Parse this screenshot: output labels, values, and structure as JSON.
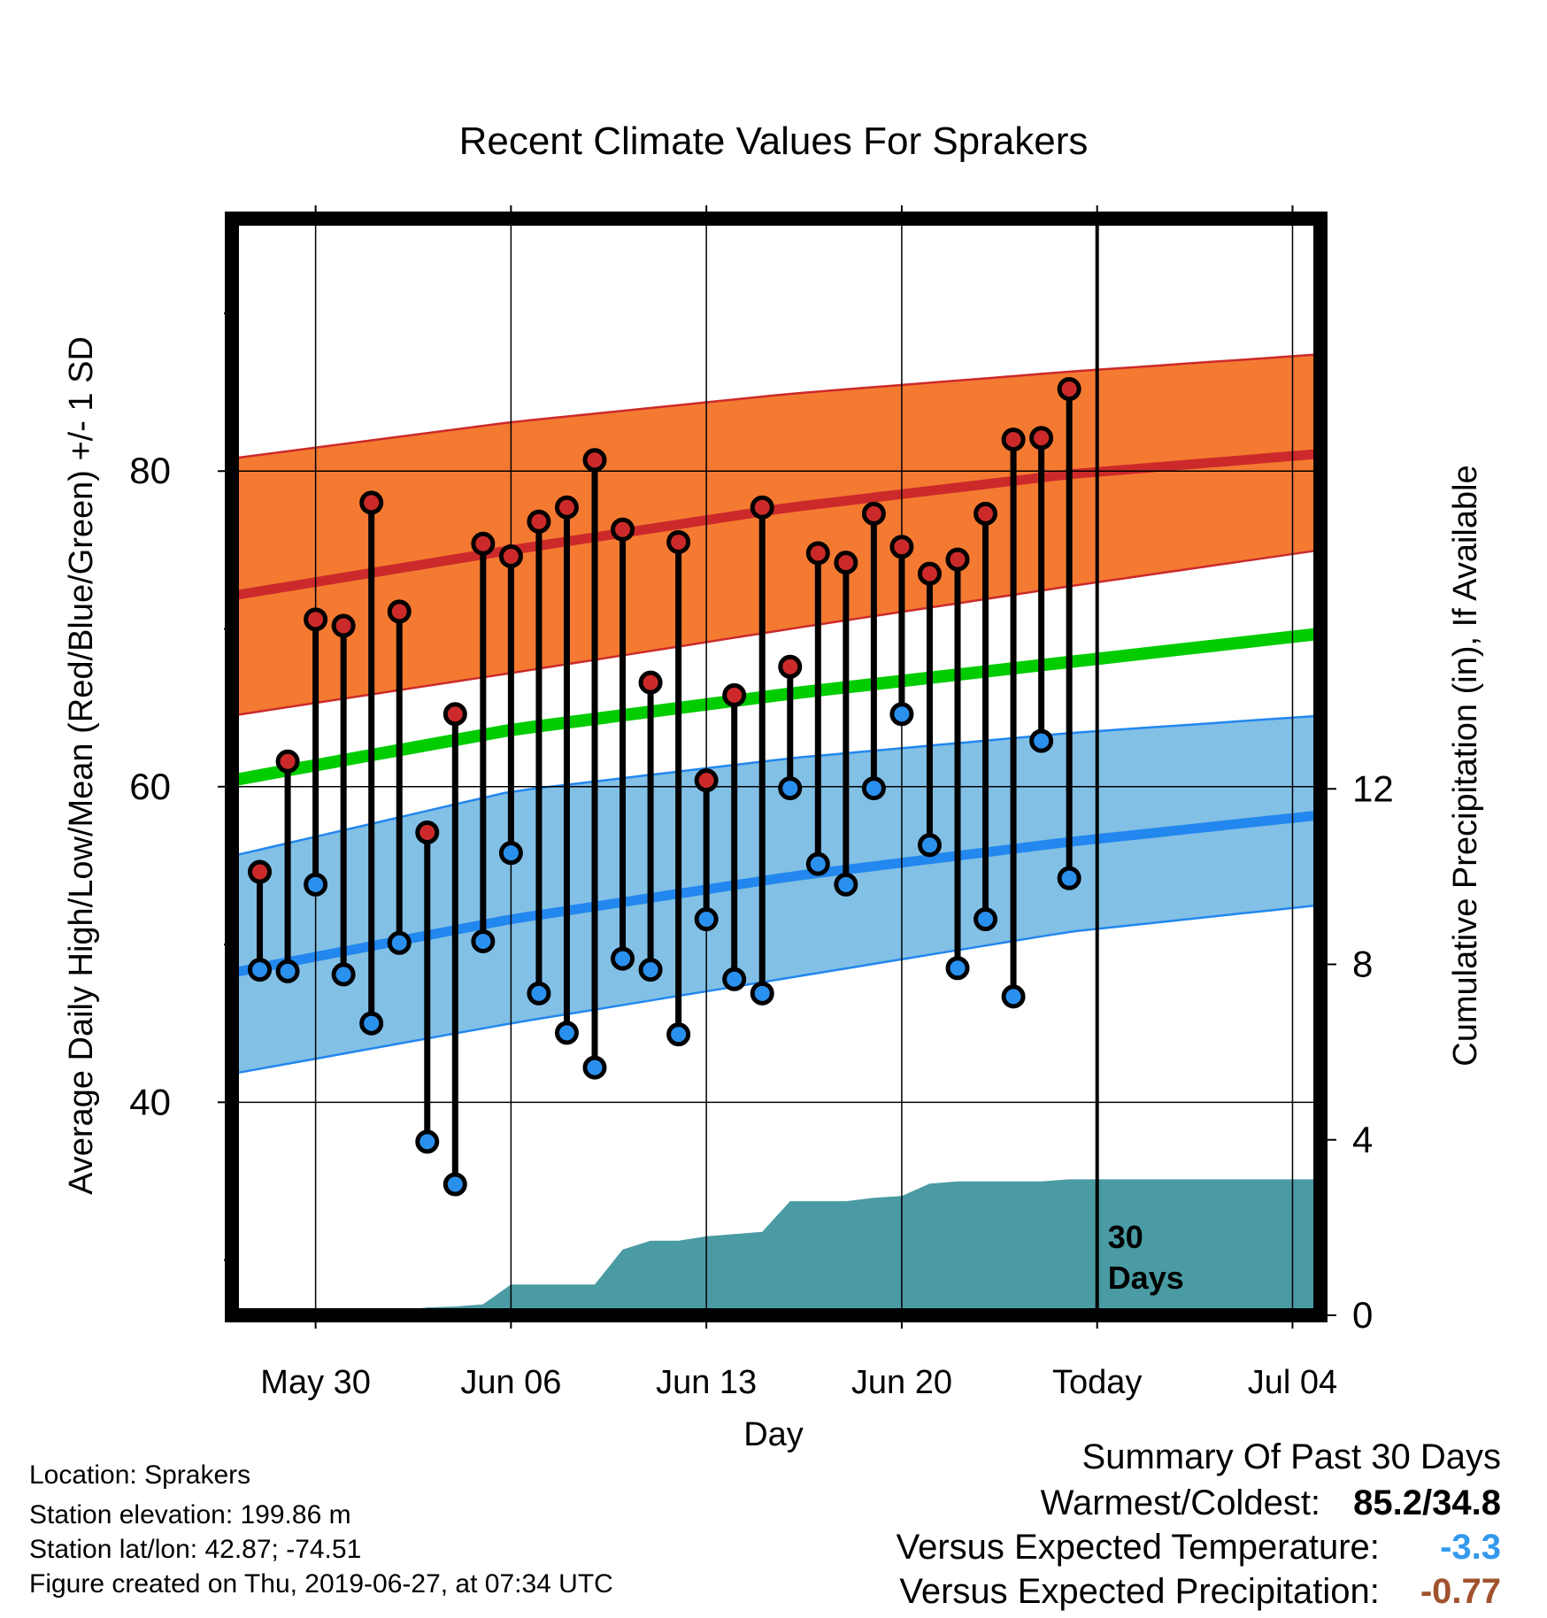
{
  "chart_data": {
    "type": "line",
    "title": "Recent Climate Values For Sprakers",
    "xlabel": "Day",
    "ylabel": "Average Daily High/Low/Mean (Red/Blue/Green) +/- 1 SD",
    "y2label": "Cumulative Precipitation (in), If Available",
    "x_tick_labels": [
      "May 30",
      "Jun 06",
      "Jun 13",
      "Jun 20",
      "Today",
      "Jul 04"
    ],
    "x_tick_dates": [
      "2019-05-30",
      "2019-06-06",
      "2019-06-13",
      "2019-06-20",
      "2019-06-27",
      "2019-07-04"
    ],
    "x_range": [
      "2019-05-27",
      "2019-07-05"
    ],
    "ylim": [
      26.5,
      96
    ],
    "y_ticks": [
      40,
      60,
      80
    ],
    "y2lim": [
      0,
      25
    ],
    "y2_ticks": [
      0,
      4,
      8,
      12
    ],
    "grid": true,
    "today_marker": {
      "date": "2019-06-27",
      "label_line1": "30",
      "label_line2": "Days"
    },
    "colors": {
      "high_band": "#f47a32",
      "high_line": "#cc2a2a",
      "low_band": "#83c0e6",
      "low_line": "#2287ee",
      "mean_line": "#00cc00",
      "precip": "#4a9ba3",
      "high_marker": "#cc2a2a",
      "low_marker": "#2a90ee"
    },
    "normals": {
      "dates": [
        "2019-05-27",
        "2019-06-06",
        "2019-06-16",
        "2019-06-26",
        "2019-07-05"
      ],
      "high_mean": [
        72.1,
        75.0,
        77.7,
        79.8,
        81.1
      ],
      "high_upper": [
        80.8,
        83.1,
        84.9,
        86.3,
        87.4
      ],
      "high_lower": [
        64.5,
        67.2,
        70.0,
        72.7,
        75.0
      ],
      "low_mean": [
        48.2,
        51.6,
        54.3,
        56.5,
        58.2
      ],
      "low_upper": [
        55.6,
        59.7,
        61.8,
        63.4,
        64.5
      ],
      "low_lower": [
        41.8,
        45.0,
        47.9,
        50.8,
        52.5
      ],
      "avg_mean": [
        60.4,
        63.6,
        65.9,
        67.9,
        69.7
      ]
    },
    "daily": {
      "dates": [
        "2019-05-28",
        "2019-05-29",
        "2019-05-30",
        "2019-05-31",
        "2019-06-01",
        "2019-06-02",
        "2019-06-03",
        "2019-06-04",
        "2019-06-05",
        "2019-06-06",
        "2019-06-07",
        "2019-06-08",
        "2019-06-09",
        "2019-06-10",
        "2019-06-11",
        "2019-06-12",
        "2019-06-13",
        "2019-06-14",
        "2019-06-15",
        "2019-06-16",
        "2019-06-17",
        "2019-06-18",
        "2019-06-19",
        "2019-06-20",
        "2019-06-21",
        "2019-06-22",
        "2019-06-23",
        "2019-06-24",
        "2019-06-25",
        "2019-06-26"
      ],
      "high": [
        54.6,
        61.6,
        70.6,
        70.2,
        78.0,
        71.1,
        57.1,
        64.6,
        75.4,
        74.6,
        76.8,
        77.7,
        80.7,
        76.3,
        66.6,
        75.5,
        60.4,
        65.8,
        77.7,
        67.6,
        74.8,
        74.2,
        77.3,
        75.2,
        73.5,
        74.4,
        77.3,
        82.0,
        82.1,
        85.2
      ],
      "low": [
        48.4,
        48.3,
        53.8,
        48.1,
        45.0,
        50.1,
        37.5,
        34.8,
        50.2,
        55.8,
        46.9,
        44.4,
        42.2,
        49.1,
        48.4,
        44.3,
        51.6,
        47.8,
        46.9,
        59.9,
        55.1,
        53.8,
        59.9,
        64.6,
        56.3,
        48.5,
        51.6,
        46.7,
        62.9,
        54.2
      ]
    },
    "precip": {
      "dates": [
        "2019-05-28",
        "2019-06-01",
        "2019-06-02",
        "2019-06-03",
        "2019-06-04",
        "2019-06-05",
        "2019-06-06",
        "2019-06-09",
        "2019-06-10",
        "2019-06-11",
        "2019-06-12",
        "2019-06-13",
        "2019-06-14",
        "2019-06-15",
        "2019-06-16",
        "2019-06-17",
        "2019-06-18",
        "2019-06-19",
        "2019-06-20",
        "2019-06-21",
        "2019-06-22",
        "2019-06-23",
        "2019-06-24",
        "2019-06-25",
        "2019-06-26",
        "2019-06-27",
        "2019-07-05"
      ],
      "values": [
        0.05,
        0.05,
        0.1,
        0.18,
        0.2,
        0.25,
        0.7,
        0.7,
        1.5,
        1.7,
        1.7,
        1.8,
        1.85,
        1.9,
        2.6,
        2.6,
        2.6,
        2.68,
        2.72,
        3.0,
        3.05,
        3.05,
        3.05,
        3.05,
        3.1,
        3.1,
        3.1
      ]
    }
  },
  "info": {
    "location": "Location: Sprakers",
    "elevation": "Station elevation: 199.86 m",
    "latlon": "Station lat/lon: 42.87; -74.51",
    "created": "Figure created on Thu, 2019-06-27, at 07:34 UTC"
  },
  "summary": {
    "title": "Summary Of Past 30 Days",
    "warm_cold_label": "Warmest/Coldest:",
    "warm_cold_value": "85.2/34.8",
    "temp_label": "Versus Expected Temperature:",
    "temp_value": "-3.3",
    "temp_color": "#3399ee",
    "precip_label": "Versus Expected Precipitation:",
    "precip_value": "-0.77",
    "precip_color": "#a0522d"
  }
}
